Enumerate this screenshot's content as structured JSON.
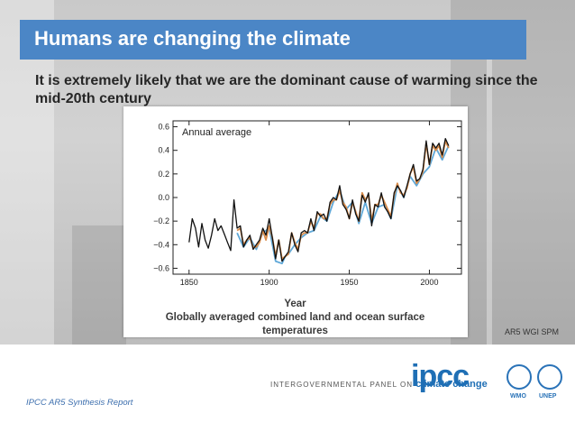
{
  "slide": {
    "title": "Humans are changing the climate",
    "subtitle": "It is extremely likely that we are the dominant cause of warming since the mid-20th century",
    "source": "AR5 WGI SPM",
    "footer": "IPCC AR5 Synthesis Report",
    "org_line": "INTERGOVERNMENTAL PANEL ON",
    "org_highlight": "climate change",
    "logo_text": "ipcc",
    "agency_1": "WMO",
    "agency_2": "UNEP"
  },
  "colors": {
    "title_bar": "#4b86c6",
    "series_black": "#111111",
    "series_orange": "#d98c4a",
    "series_blue": "#5fa8d8"
  },
  "chart_data": {
    "type": "line",
    "title": "Annual average",
    "xlabel_line1": "Year",
    "xlabel_line2": "Globally averaged combined land and ocean surface",
    "xlabel_line3": "temperatures",
    "ylabel": "",
    "xlim": [
      1840,
      2020
    ],
    "ylim": [
      -0.65,
      0.65
    ],
    "xticks": [
      1850,
      1900,
      1950,
      2000
    ],
    "yticks": [
      -0.6,
      -0.4,
      -0.2,
      0.0,
      0.2,
      0.4,
      0.6
    ],
    "ytick_labels": [
      "−0.6",
      "−0.4",
      "−0.2",
      "0.0",
      "0.2",
      "0.4",
      "0.6"
    ],
    "series": [
      {
        "color": "#111111",
        "x": [
          1850,
          1852,
          1854,
          1856,
          1858,
          1860,
          1862,
          1864,
          1866,
          1868,
          1870,
          1872,
          1874,
          1876,
          1878,
          1880,
          1882,
          1884,
          1886,
          1888,
          1890,
          1892,
          1894,
          1896,
          1898,
          1900,
          1902,
          1904,
          1906,
          1908,
          1910,
          1912,
          1914,
          1916,
          1918,
          1920,
          1922,
          1924,
          1926,
          1928,
          1930,
          1932,
          1934,
          1936,
          1938,
          1940,
          1942,
          1944,
          1946,
          1948,
          1950,
          1952,
          1954,
          1956,
          1958,
          1960,
          1962,
          1964,
          1966,
          1968,
          1970,
          1972,
          1974,
          1976,
          1978,
          1980,
          1982,
          1984,
          1986,
          1988,
          1990,
          1992,
          1994,
          1996,
          1998,
          2000,
          2002,
          2004,
          2006,
          2008,
          2010,
          2012
        ],
        "y": [
          -0.38,
          -0.18,
          -0.26,
          -0.42,
          -0.22,
          -0.36,
          -0.43,
          -0.32,
          -0.18,
          -0.28,
          -0.24,
          -0.31,
          -0.38,
          -0.45,
          -0.02,
          -0.26,
          -0.24,
          -0.42,
          -0.36,
          -0.32,
          -0.44,
          -0.4,
          -0.36,
          -0.26,
          -0.32,
          -0.18,
          -0.34,
          -0.52,
          -0.36,
          -0.54,
          -0.5,
          -0.46,
          -0.3,
          -0.4,
          -0.46,
          -0.3,
          -0.28,
          -0.3,
          -0.18,
          -0.28,
          -0.12,
          -0.16,
          -0.14,
          -0.2,
          -0.04,
          0.0,
          -0.02,
          0.1,
          -0.06,
          -0.1,
          -0.18,
          -0.02,
          -0.14,
          -0.2,
          0.02,
          -0.04,
          0.04,
          -0.24,
          -0.06,
          -0.08,
          0.04,
          -0.08,
          -0.12,
          -0.18,
          0.04,
          0.1,
          0.06,
          0.0,
          0.1,
          0.2,
          0.28,
          0.14,
          0.16,
          0.24,
          0.48,
          0.28,
          0.46,
          0.42,
          0.46,
          0.36,
          0.5,
          0.44
        ]
      },
      {
        "color": "#d98c4a",
        "x": [
          1880,
          1882,
          1884,
          1886,
          1888,
          1890,
          1892,
          1894,
          1896,
          1898,
          1900,
          1902,
          1904,
          1906,
          1908,
          1910,
          1912,
          1914,
          1916,
          1918,
          1920,
          1922,
          1924,
          1926,
          1928,
          1930,
          1932,
          1934,
          1936,
          1938,
          1940,
          1942,
          1944,
          1946,
          1948,
          1950,
          1952,
          1954,
          1956,
          1958,
          1960,
          1962,
          1964,
          1966,
          1968,
          1970,
          1972,
          1974,
          1976,
          1978,
          1980,
          1982,
          1984,
          1986,
          1988,
          1990,
          1992,
          1994,
          1996,
          1998,
          2000,
          2002,
          2004,
          2006,
          2008,
          2010,
          2012
        ],
        "y": [
          -0.28,
          -0.26,
          -0.4,
          -0.36,
          -0.34,
          -0.42,
          -0.42,
          -0.38,
          -0.28,
          -0.36,
          -0.24,
          -0.34,
          -0.5,
          -0.36,
          -0.52,
          -0.5,
          -0.48,
          -0.3,
          -0.38,
          -0.44,
          -0.32,
          -0.3,
          -0.3,
          -0.2,
          -0.26,
          -0.14,
          -0.14,
          -0.18,
          -0.18,
          -0.06,
          -0.02,
          -0.02,
          0.06,
          -0.04,
          -0.08,
          -0.18,
          -0.04,
          -0.12,
          -0.2,
          0.04,
          -0.02,
          0.02,
          -0.2,
          -0.06,
          -0.06,
          0.02,
          -0.04,
          -0.1,
          -0.16,
          0.02,
          0.12,
          0.04,
          0.02,
          0.08,
          0.2,
          0.26,
          0.12,
          0.16,
          0.22,
          0.46,
          0.28,
          0.44,
          0.4,
          0.44,
          0.34,
          0.48,
          0.42
        ]
      },
      {
        "color": "#5fa8d8",
        "x": [
          1880,
          1884,
          1888,
          1892,
          1896,
          1900,
          1904,
          1908,
          1910,
          1912,
          1916,
          1920,
          1924,
          1928,
          1932,
          1936,
          1940,
          1944,
          1948,
          1952,
          1956,
          1960,
          1964,
          1968,
          1972,
          1976,
          1980,
          1984,
          1988,
          1992,
          1996,
          2000,
          2004,
          2008,
          2012
        ],
        "y": [
          -0.3,
          -0.42,
          -0.34,
          -0.44,
          -0.3,
          -0.26,
          -0.54,
          -0.56,
          -0.5,
          -0.48,
          -0.4,
          -0.34,
          -0.3,
          -0.28,
          -0.16,
          -0.2,
          -0.04,
          0.06,
          -0.1,
          -0.04,
          -0.22,
          -0.04,
          -0.22,
          -0.08,
          -0.06,
          -0.18,
          0.1,
          0.0,
          0.18,
          0.1,
          0.2,
          0.26,
          0.42,
          0.32,
          0.44
        ]
      }
    ]
  }
}
